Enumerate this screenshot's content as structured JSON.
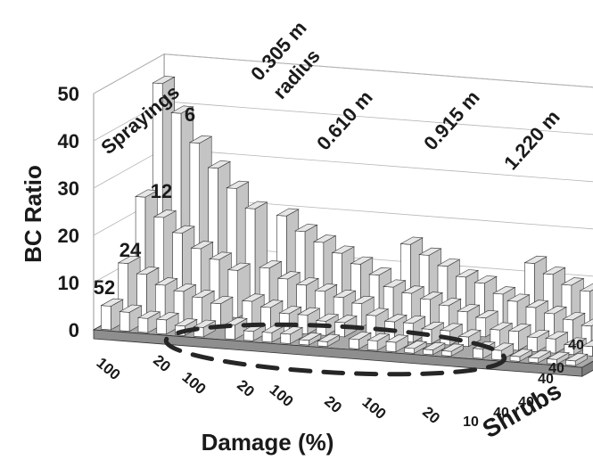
{
  "chart_data": {
    "type": "bar3d",
    "title": "",
    "ylabel": "BC Ratio",
    "xlabel": "Damage (%)",
    "zlabel": "Shrubs",
    "ylim": [
      0,
      50
    ],
    "yticks": [
      "0",
      "10",
      "20",
      "30",
      "40",
      "50"
    ],
    "sprayings_label": "Sprayings",
    "sprayings": [
      "6",
      "12",
      "24",
      "52"
    ],
    "radius_labels": [
      "0.305 m\nradius",
      "0.610 m",
      "0.915 m",
      "1.220 m"
    ],
    "damage_tick_labels": [
      "100",
      "20",
      "100",
      "20",
      "100",
      "20",
      "100",
      "20"
    ],
    "shrub_tick_labels": [
      "10",
      "40",
      "40",
      "40"
    ],
    "note": "",
    "groups": [
      {
        "radius": "0.305 m",
        "rows": [
          {
            "sprayings": "6",
            "values": [
              46,
              40,
              34,
              29,
              25,
              21
            ]
          },
          {
            "sprayings": "12",
            "values": [
              24,
              20,
              17,
              14,
              12,
              10
            ]
          },
          {
            "sprayings": "24",
            "values": [
              12,
              10,
              8,
              7,
              6,
              5
            ]
          },
          {
            "sprayings": "52",
            "values": [
              5,
              4,
              3,
              3,
              2,
              2
            ]
          }
        ]
      },
      {
        "radius": "0.610 m",
        "rows": [
          {
            "sprayings": "6",
            "values": [
              20,
              17,
              15,
              13,
              11,
              9
            ]
          },
          {
            "sprayings": "12",
            "values": [
              11,
              9,
              8,
              7,
              6,
              5
            ]
          },
          {
            "sprayings": "24",
            "values": [
              6,
              5,
              4,
              4,
              3,
              3
            ]
          },
          {
            "sprayings": "52",
            "values": [
              3,
              2,
              2,
              2,
              1,
              1
            ]
          }
        ]
      },
      {
        "radius": "0.915 m",
        "rows": [
          {
            "sprayings": "6",
            "values": [
              16,
              14,
              12,
              10,
              9,
              7
            ]
          },
          {
            "sprayings": "12",
            "values": [
              9,
              8,
              7,
              6,
              5,
              4
            ]
          },
          {
            "sprayings": "24",
            "values": [
              5,
              4,
              4,
              3,
              3,
              2
            ]
          },
          {
            "sprayings": "52",
            "values": [
              2,
              2,
              2,
              1,
              1,
              1
            ]
          }
        ]
      },
      {
        "radius": "1.220 m",
        "rows": [
          {
            "sprayings": "6",
            "values": [
              14,
              12,
              10,
              9,
              8,
              6
            ]
          },
          {
            "sprayings": "12",
            "values": [
              8,
              7,
              6,
              5,
              4,
              4
            ]
          },
          {
            "sprayings": "24",
            "values": [
              4,
              4,
              3,
              3,
              2,
              2
            ]
          },
          {
            "sprayings": "52",
            "values": [
              2,
              2,
              1,
              1,
              1,
              1
            ]
          }
        ]
      }
    ],
    "colors": {
      "bar_front": "#ffffff",
      "bar_side": "#c4c4c4",
      "bar_top": "#e6e6e6",
      "floor": "#a9a9a9",
      "outline": "#333333"
    }
  }
}
